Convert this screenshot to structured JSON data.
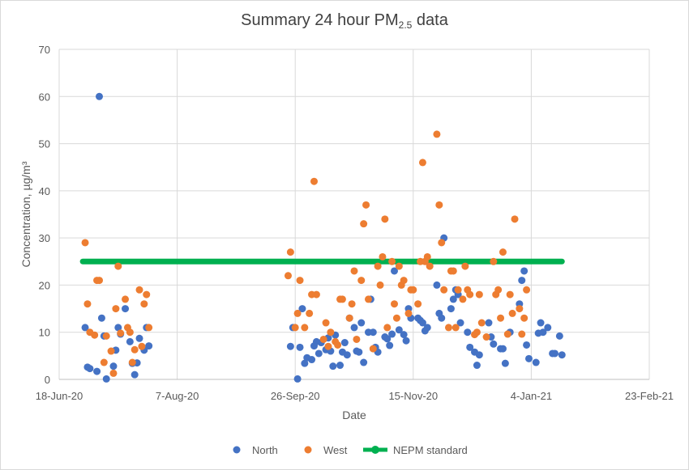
{
  "chart_data": {
    "type": "scatter",
    "title_main": "Summary 24 hour PM",
    "title_sub": "2.5",
    "title_suffix": " data",
    "xlabel": "Date",
    "ylabel": "Concentration, µg/m³",
    "ylim": [
      0,
      70
    ],
    "yticks": [
      0,
      10,
      20,
      30,
      40,
      50,
      60,
      70
    ],
    "xlim": [
      "2020-06-18",
      "2021-02-23"
    ],
    "xticks": [
      {
        "date": "2020-06-18",
        "label": "18-Jun-20"
      },
      {
        "date": "2020-08-07",
        "label": "7-Aug-20"
      },
      {
        "date": "2020-09-26",
        "label": "26-Sep-20"
      },
      {
        "date": "2020-11-15",
        "label": "15-Nov-20"
      },
      {
        "date": "2021-01-04",
        "label": "4-Jan-21"
      },
      {
        "date": "2021-02-23",
        "label": "23-Feb-21"
      }
    ],
    "grid": true,
    "legend_position": "bottom",
    "series": [
      {
        "name": "North",
        "color": "#4472c4",
        "kind": "points",
        "points": [
          [
            "2020-06-29",
            11
          ],
          [
            "2020-06-30",
            2.6
          ],
          [
            "2020-07-01",
            2.3
          ],
          [
            "2020-07-04",
            1.7
          ],
          [
            "2020-07-05",
            60
          ],
          [
            "2020-07-06",
            13
          ],
          [
            "2020-07-07",
            9.2
          ],
          [
            "2020-07-08",
            0.1
          ],
          [
            "2020-07-11",
            2.8
          ],
          [
            "2020-07-12",
            6.2
          ],
          [
            "2020-07-13",
            11
          ],
          [
            "2020-07-14",
            9.6
          ],
          [
            "2020-07-16",
            15
          ],
          [
            "2020-07-18",
            8
          ],
          [
            "2020-07-19",
            3.4
          ],
          [
            "2020-07-20",
            1
          ],
          [
            "2020-07-21",
            3.5
          ],
          [
            "2020-07-22",
            8.7
          ],
          [
            "2020-07-24",
            6.2
          ],
          [
            "2020-07-25",
            11
          ],
          [
            "2020-07-26",
            7.1
          ],
          [
            "2020-09-24",
            7
          ],
          [
            "2020-09-25",
            11
          ],
          [
            "2020-09-27",
            0.1
          ],
          [
            "2020-09-28",
            6.8
          ],
          [
            "2020-09-29",
            15
          ],
          [
            "2020-09-30",
            3.4
          ],
          [
            "2020-10-01",
            4.6
          ],
          [
            "2020-10-03",
            4.2
          ],
          [
            "2020-10-04",
            7.1
          ],
          [
            "2020-10-05",
            8
          ],
          [
            "2020-10-06",
            5.5
          ],
          [
            "2020-10-07",
            7.8
          ],
          [
            "2020-10-09",
            6.3
          ],
          [
            "2020-10-10",
            8.8
          ],
          [
            "2020-10-11",
            6
          ],
          [
            "2020-10-12",
            2.8
          ],
          [
            "2020-10-13",
            9.4
          ],
          [
            "2020-10-15",
            3
          ],
          [
            "2020-10-16",
            5.8
          ],
          [
            "2020-10-17",
            7.8
          ],
          [
            "2020-10-18",
            5.2
          ],
          [
            "2020-10-19",
            13
          ],
          [
            "2020-10-21",
            11
          ],
          [
            "2020-10-22",
            6
          ],
          [
            "2020-10-23",
            5.8
          ],
          [
            "2020-10-24",
            12
          ],
          [
            "2020-10-25",
            3.6
          ],
          [
            "2020-10-27",
            10
          ],
          [
            "2020-10-28",
            17
          ],
          [
            "2020-10-29",
            10
          ],
          [
            "2020-10-30",
            6.8
          ],
          [
            "2020-10-31",
            5.8
          ],
          [
            "2020-11-03",
            9
          ],
          [
            "2020-11-04",
            8.6
          ],
          [
            "2020-11-05",
            7.2
          ],
          [
            "2020-11-06",
            9.6
          ],
          [
            "2020-11-07",
            23
          ],
          [
            "2020-11-09",
            10.5
          ],
          [
            "2020-11-11",
            9.5
          ],
          [
            "2020-11-12",
            8.2
          ],
          [
            "2020-11-13",
            15
          ],
          [
            "2020-11-14",
            13
          ],
          [
            "2020-11-17",
            13
          ],
          [
            "2020-11-18",
            12.5
          ],
          [
            "2020-11-19",
            12
          ],
          [
            "2020-11-20",
            10.3
          ],
          [
            "2020-11-21",
            11
          ],
          [
            "2020-11-25",
            20
          ],
          [
            "2020-11-26",
            14
          ],
          [
            "2020-11-27",
            13
          ],
          [
            "2020-11-28",
            30
          ],
          [
            "2020-12-01",
            15
          ],
          [
            "2020-12-02",
            17
          ],
          [
            "2020-12-03",
            19
          ],
          [
            "2020-12-04",
            18
          ],
          [
            "2020-12-05",
            12
          ],
          [
            "2020-12-08",
            10
          ],
          [
            "2020-12-09",
            6.8
          ],
          [
            "2020-12-11",
            5.8
          ],
          [
            "2020-12-12",
            3
          ],
          [
            "2020-12-13",
            5.2
          ],
          [
            "2020-12-17",
            12
          ],
          [
            "2020-12-18",
            9
          ],
          [
            "2020-12-19",
            7.5
          ],
          [
            "2020-12-22",
            6.5
          ],
          [
            "2020-12-23",
            6.5
          ],
          [
            "2020-12-24",
            3.4
          ],
          [
            "2020-12-26",
            10
          ],
          [
            "2020-12-30",
            16
          ],
          [
            "2020-12-31",
            21
          ],
          [
            "2021-01-01",
            23
          ],
          [
            "2021-01-02",
            7.3
          ],
          [
            "2021-01-03",
            4.4
          ],
          [
            "2021-01-06",
            3.6
          ],
          [
            "2021-01-07",
            9.8
          ],
          [
            "2021-01-08",
            12
          ],
          [
            "2021-01-09",
            10
          ],
          [
            "2021-01-11",
            11
          ],
          [
            "2021-01-13",
            5.5
          ],
          [
            "2021-01-14",
            5.5
          ],
          [
            "2021-01-16",
            9.2
          ],
          [
            "2021-01-17",
            5.2
          ]
        ]
      },
      {
        "name": "West",
        "color": "#ed7d31",
        "kind": "points",
        "points": [
          [
            "2020-06-29",
            29
          ],
          [
            "2020-06-30",
            16
          ],
          [
            "2020-07-01",
            10
          ],
          [
            "2020-07-03",
            9.4
          ],
          [
            "2020-07-04",
            21
          ],
          [
            "2020-07-05",
            21
          ],
          [
            "2020-07-07",
            3.6
          ],
          [
            "2020-07-08",
            9.2
          ],
          [
            "2020-07-10",
            6
          ],
          [
            "2020-07-11",
            1.3
          ],
          [
            "2020-07-12",
            15
          ],
          [
            "2020-07-13",
            24
          ],
          [
            "2020-07-14",
            9.8
          ],
          [
            "2020-07-16",
            17
          ],
          [
            "2020-07-17",
            11
          ],
          [
            "2020-07-18",
            10
          ],
          [
            "2020-07-19",
            3.6
          ],
          [
            "2020-07-20",
            6.3
          ],
          [
            "2020-07-22",
            19
          ],
          [
            "2020-07-23",
            7
          ],
          [
            "2020-07-24",
            16
          ],
          [
            "2020-07-25",
            18
          ],
          [
            "2020-07-26",
            11
          ],
          [
            "2020-09-23",
            22
          ],
          [
            "2020-09-24",
            27
          ],
          [
            "2020-09-26",
            11
          ],
          [
            "2020-09-27",
            14
          ],
          [
            "2020-09-28",
            21
          ],
          [
            "2020-09-30",
            11
          ],
          [
            "2020-10-02",
            14
          ],
          [
            "2020-10-03",
            18
          ],
          [
            "2020-10-04",
            42
          ],
          [
            "2020-10-05",
            18
          ],
          [
            "2020-10-08",
            8.5
          ],
          [
            "2020-10-09",
            12
          ],
          [
            "2020-10-10",
            7
          ],
          [
            "2020-10-11",
            10
          ],
          [
            "2020-10-13",
            8
          ],
          [
            "2020-10-14",
            7.3
          ],
          [
            "2020-10-15",
            17
          ],
          [
            "2020-10-16",
            17
          ],
          [
            "2020-10-19",
            13
          ],
          [
            "2020-10-20",
            16
          ],
          [
            "2020-10-21",
            23
          ],
          [
            "2020-10-22",
            8.5
          ],
          [
            "2020-10-24",
            21
          ],
          [
            "2020-10-25",
            33
          ],
          [
            "2020-10-26",
            37
          ],
          [
            "2020-10-27",
            17
          ],
          [
            "2020-10-29",
            6.5
          ],
          [
            "2020-10-31",
            24
          ],
          [
            "2020-11-01",
            20
          ],
          [
            "2020-11-02",
            26
          ],
          [
            "2020-11-03",
            34
          ],
          [
            "2020-11-04",
            11
          ],
          [
            "2020-11-06",
            25
          ],
          [
            "2020-11-07",
            16
          ],
          [
            "2020-11-08",
            13
          ],
          [
            "2020-11-09",
            24
          ],
          [
            "2020-11-10",
            20
          ],
          [
            "2020-11-11",
            21
          ],
          [
            "2020-11-13",
            14
          ],
          [
            "2020-11-14",
            19
          ],
          [
            "2020-11-15",
            19
          ],
          [
            "2020-11-17",
            16
          ],
          [
            "2020-11-18",
            25
          ],
          [
            "2020-11-19",
            46
          ],
          [
            "2020-11-20",
            25
          ],
          [
            "2020-11-21",
            26
          ],
          [
            "2020-11-22",
            24
          ],
          [
            "2020-11-25",
            52
          ],
          [
            "2020-11-26",
            37
          ],
          [
            "2020-11-27",
            29
          ],
          [
            "2020-11-28",
            19
          ],
          [
            "2020-11-30",
            11
          ],
          [
            "2020-12-01",
            23
          ],
          [
            "2020-12-02",
            23
          ],
          [
            "2020-12-03",
            11
          ],
          [
            "2020-12-04",
            19
          ],
          [
            "2020-12-06",
            17
          ],
          [
            "2020-12-07",
            24
          ],
          [
            "2020-12-08",
            19
          ],
          [
            "2020-12-09",
            18
          ],
          [
            "2020-12-11",
            9.5
          ],
          [
            "2020-12-12",
            10
          ],
          [
            "2020-12-13",
            18
          ],
          [
            "2020-12-14",
            12
          ],
          [
            "2020-12-16",
            9
          ],
          [
            "2020-12-19",
            25
          ],
          [
            "2020-12-20",
            18
          ],
          [
            "2020-12-21",
            19
          ],
          [
            "2020-12-22",
            13
          ],
          [
            "2020-12-23",
            27
          ],
          [
            "2020-12-25",
            9.6
          ],
          [
            "2020-12-26",
            18
          ],
          [
            "2020-12-27",
            14
          ],
          [
            "2020-12-28",
            34
          ],
          [
            "2020-12-30",
            15
          ],
          [
            "2020-12-31",
            9.6
          ],
          [
            "2021-01-01",
            13
          ],
          [
            "2021-01-02",
            19
          ]
        ]
      },
      {
        "name": "NEPM standard",
        "color": "#00b050",
        "kind": "line",
        "x_start": "2020-06-28",
        "x_end": "2021-01-17",
        "value": 25
      }
    ]
  }
}
